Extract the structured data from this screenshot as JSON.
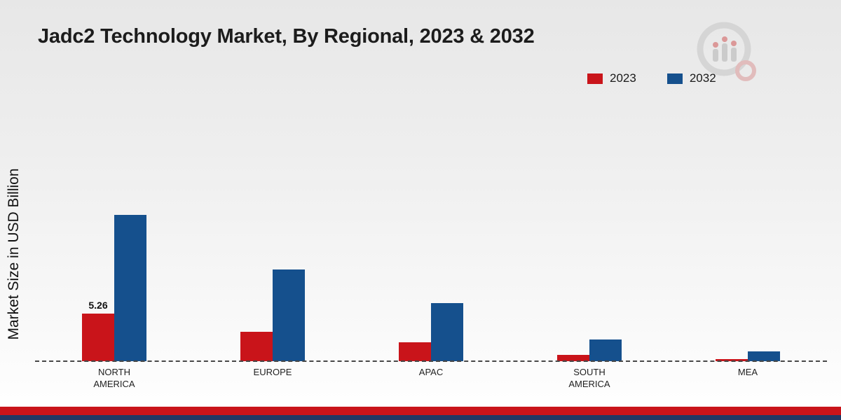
{
  "title": "Jadc2 Technology Market, By Regional, 2023 & 2032",
  "y_axis_label": "Market Size in USD Billion",
  "legend": [
    {
      "label": "2023",
      "color": "#c9141a"
    },
    {
      "label": "2032",
      "color": "#15508d"
    }
  ],
  "footer": {
    "red_bar_color": "#c9141a",
    "navy_bar_color": "#203864"
  },
  "chart_data": {
    "type": "bar",
    "title": "Jadc2 Technology Market, By Regional, 2023 & 2032",
    "xlabel": "",
    "ylabel": "Market Size in USD Billion",
    "categories": [
      "NORTH AMERICA",
      "EUROPE",
      "APAC",
      "SOUTH AMERICA",
      "MEA"
    ],
    "series": [
      {
        "name": "2023",
        "color": "#c9141a",
        "values": [
          5.26,
          3.2,
          2.1,
          0.7,
          0.25
        ]
      },
      {
        "name": "2032",
        "color": "#15508d",
        "values": [
          16.1,
          10.1,
          6.4,
          2.4,
          1.1
        ]
      }
    ],
    "ylim": [
      0,
      18
    ],
    "grid": false,
    "legend_position": "top-right",
    "baseline_style": "dashed",
    "annotations": [
      {
        "series": "2023",
        "category": "NORTH AMERICA",
        "text": "5.26"
      }
    ]
  }
}
